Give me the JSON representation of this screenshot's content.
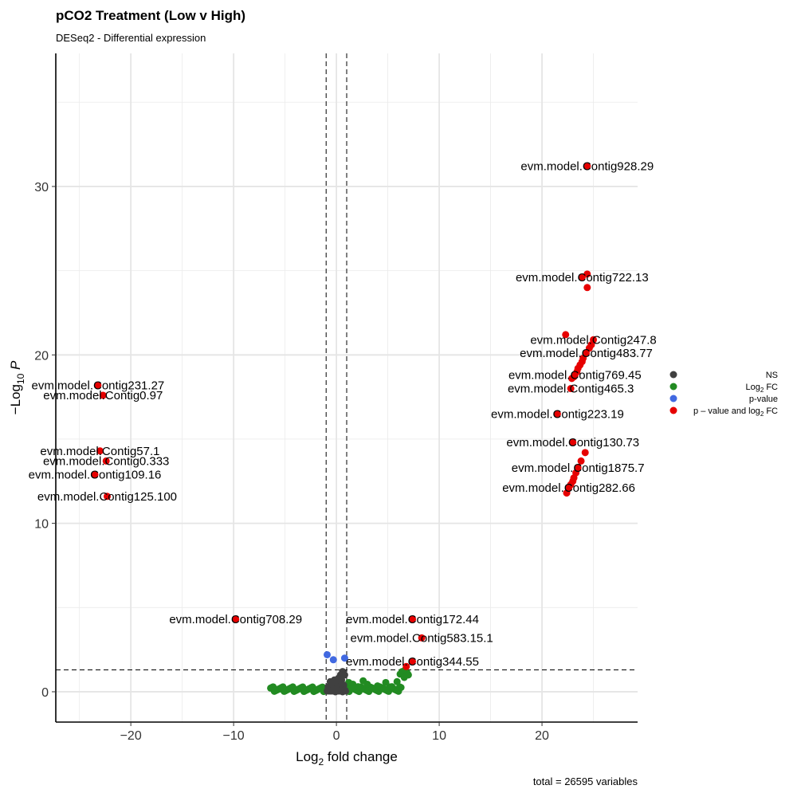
{
  "title": "pCO2 Treatment (Low v High)",
  "subtitle": "DESeq2 - Differential expression",
  "caption": "total = 26595 variables",
  "chart_data": {
    "type": "scatter",
    "xlabel": "Log2 fold change",
    "ylabel": "−Log10 P",
    "xlim": [
      -27.3,
      29.3
    ],
    "ylim": [
      -1.8,
      37.9
    ],
    "xticks": [
      -20,
      -10,
      0,
      10,
      20
    ],
    "yticks": [
      0,
      10,
      20,
      30
    ],
    "grid": true,
    "thresholds": {
      "fc": [
        -1,
        1
      ],
      "p": 1.3
    },
    "legend_position": "right",
    "colors": {
      "NS": "#404040",
      "Log2 FC": "#228B22",
      "p-value": "#4169E1",
      "p-value and log2 FC": "#E60000"
    },
    "legend": [
      {
        "key": "NS",
        "text": "NS",
        "sub": "",
        "tail": ""
      },
      {
        "key": "Log2 FC",
        "text": "Log",
        "sub": "2",
        "tail": " FC"
      },
      {
        "key": "p-value",
        "text": "p-value",
        "sub": "",
        "tail": ""
      },
      {
        "key": "p-value and log2 FC",
        "text": "p – value and log",
        "sub": "2",
        "tail": " FC"
      }
    ],
    "series": [
      {
        "name": "p-value and log2 FC",
        "color": "#E60000",
        "points": [
          [
            24.4,
            31.2
          ],
          [
            23.9,
            24.6
          ],
          [
            24.4,
            24.8
          ],
          [
            24.4,
            24.0
          ],
          [
            22.3,
            21.2
          ],
          [
            25.0,
            20.9
          ],
          [
            24.8,
            20.6
          ],
          [
            24.6,
            20.4
          ],
          [
            24.3,
            20.1
          ],
          [
            24.0,
            19.8
          ],
          [
            23.9,
            19.6
          ],
          [
            23.7,
            19.4
          ],
          [
            23.5,
            19.2
          ],
          [
            23.4,
            19.0
          ],
          [
            23.2,
            18.8
          ],
          [
            23.1,
            18.7
          ],
          [
            22.9,
            18.6
          ],
          [
            22.8,
            18.0
          ],
          [
            21.5,
            16.5
          ],
          [
            23.0,
            14.8
          ],
          [
            24.2,
            14.2
          ],
          [
            23.8,
            13.7
          ],
          [
            23.5,
            13.3
          ],
          [
            23.3,
            13.0
          ],
          [
            23.1,
            12.7
          ],
          [
            23.0,
            12.5
          ],
          [
            22.8,
            12.3
          ],
          [
            22.6,
            12.1
          ],
          [
            22.4,
            11.8
          ],
          [
            -23.2,
            18.2
          ],
          [
            -22.7,
            17.6
          ],
          [
            -23.0,
            14.3
          ],
          [
            -22.4,
            13.7
          ],
          [
            -23.5,
            12.9
          ],
          [
            -22.3,
            11.6
          ],
          [
            -9.8,
            4.3
          ],
          [
            7.4,
            4.3
          ],
          [
            8.3,
            3.2
          ],
          [
            7.4,
            1.8
          ],
          [
            6.8,
            1.5
          ]
        ]
      },
      {
        "name": "p-value",
        "color": "#4169E1",
        "points": [
          [
            -0.9,
            2.2
          ],
          [
            -0.3,
            1.9
          ],
          [
            0.8,
            2.0
          ]
        ]
      },
      {
        "name": "NS",
        "color": "#404040",
        "points": [
          [
            0.6,
            1.2
          ],
          [
            0.4,
            1.0
          ],
          [
            0.8,
            1.0
          ],
          [
            0.2,
            0.8
          ],
          [
            -0.2,
            0.7
          ],
          [
            0.5,
            0.7
          ],
          [
            -0.6,
            0.6
          ],
          [
            0.1,
            0.5
          ],
          [
            0.7,
            0.4
          ],
          [
            -0.4,
            0.4
          ],
          [
            0.3,
            0.3
          ],
          [
            -0.8,
            0.3
          ],
          [
            0.0,
            0.2
          ],
          [
            -0.3,
            0.15
          ],
          [
            0.5,
            0.1
          ],
          [
            0.8,
            0.1
          ],
          [
            -0.6,
            0.05
          ],
          [
            0.2,
            0.05
          ],
          [
            -0.1,
            0.0
          ],
          [
            0.6,
            0.0
          ]
        ]
      },
      {
        "name": "Log2 FC",
        "color": "#228B22",
        "points": [
          [
            6.7,
            1.3
          ],
          [
            6.9,
            1.1
          ],
          [
            7.0,
            1.0
          ],
          [
            6.4,
            1.2
          ],
          [
            6.2,
            1.05
          ],
          [
            6.6,
            0.85
          ],
          [
            5.9,
            0.6
          ],
          [
            4.8,
            0.55
          ],
          [
            2.6,
            0.65
          ],
          [
            1.2,
            0.55
          ],
          [
            1.6,
            0.45
          ],
          [
            3.0,
            0.45
          ],
          [
            -5.3,
            0.15
          ],
          [
            -6.0,
            0.1
          ],
          [
            4.0,
            0.35
          ],
          [
            5.4,
            0.3
          ],
          [
            2.1,
            0.3
          ],
          [
            1.5,
            0.2
          ],
          [
            3.5,
            0.2
          ],
          [
            -3.0,
            0.1
          ]
        ]
      }
    ],
    "band_ranges": [
      [
        -6.4,
        -1.0
      ],
      [
        1.0,
        6.4
      ]
    ],
    "band_y": [
      0.0,
      0.3
    ],
    "labels": [
      {
        "text": "evm.model.Contig928.29",
        "x": 24.4,
        "y": 31.2
      },
      {
        "text": "evm.model.Contig722.13",
        "x": 23.9,
        "y": 24.6
      },
      {
        "text": "evm.model.Contig247.8",
        "x": 25.0,
        "y": 20.9
      },
      {
        "text": "evm.model.Contig483.77",
        "x": 24.3,
        "y": 20.1
      },
      {
        "text": "evm.model.Contig769.45",
        "x": 23.2,
        "y": 18.8
      },
      {
        "text": "evm.model.Contig465.3",
        "x": 22.8,
        "y": 18.0
      },
      {
        "text": "evm.model.Contig223.19",
        "x": 21.5,
        "y": 16.5
      },
      {
        "text": "evm.model.Contig130.73",
        "x": 23.0,
        "y": 14.8
      },
      {
        "text": "evm.model.Contig1875.7",
        "x": 23.5,
        "y": 13.3
      },
      {
        "text": "evm.model.Contig282.66",
        "x": 22.6,
        "y": 12.1
      },
      {
        "text": "evm.model.Contig231.27",
        "x": -23.2,
        "y": 18.2
      },
      {
        "text": "evm.model.Contig0.97",
        "x": -22.7,
        "y": 17.6
      },
      {
        "text": "evm.model.Contig57.1",
        "x": -23.0,
        "y": 14.3
      },
      {
        "text": "evm.model.Contig0.333",
        "x": -22.4,
        "y": 13.7
      },
      {
        "text": "evm.model.Contig109.16",
        "x": -23.5,
        "y": 12.9
      },
      {
        "text": "evm.model.Contig125.100",
        "x": -22.3,
        "y": 11.6
      },
      {
        "text": "evm.model.Contig708.29",
        "x": -9.8,
        "y": 4.3
      },
      {
        "text": "evm.model.Contig172.44",
        "x": 7.4,
        "y": 4.3
      },
      {
        "text": "evm.model.Contig583.15.1",
        "x": 8.3,
        "y": 3.2
      },
      {
        "text": "evm.model.Contig344.55",
        "x": 7.4,
        "y": 1.8
      }
    ]
  }
}
